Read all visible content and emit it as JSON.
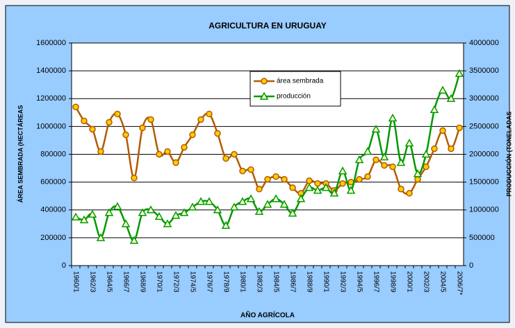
{
  "chart_data": {
    "type": "line",
    "title": "AGRICULTURA EN URUGUAY",
    "x_label": "AÑO AGRÍCOLA",
    "y_label": "ÁREA SEMBRADA (HECTÁREAS",
    "y2_label": "PRODUCCIÓN (TONELADAS",
    "categories": [
      "1960/1",
      null,
      "1962/3",
      null,
      "1964/5",
      null,
      "1966/7",
      null,
      "1968/9",
      null,
      "1970/1",
      null,
      "1972/3",
      null,
      "1974/5",
      null,
      "1976/7",
      null,
      "1978/9",
      null,
      "1980/1",
      null,
      "1982/3",
      null,
      "1984/5",
      null,
      "1986/7",
      null,
      "1988/9",
      null,
      "1990/1",
      null,
      "1992/3",
      null,
      "1994/5",
      null,
      "1996/7",
      null,
      "1998/9",
      null,
      "2000/1",
      null,
      "2002/3",
      null,
      "2004/5",
      null,
      "2006/7*"
    ],
    "series": [
      {
        "name": "área sembrada",
        "color": "#b35a00",
        "marker_fill": "#ffcc00",
        "marker": "circle",
        "values": [
          1140000,
          1040000,
          980000,
          820000,
          1030000,
          1090000,
          940000,
          630000,
          990000,
          1050000,
          800000,
          820000,
          740000,
          850000,
          940000,
          1050000,
          1090000,
          950000,
          770000,
          800000,
          680000,
          690000,
          550000,
          620000,
          640000,
          620000,
          560000,
          520000,
          610000,
          590000,
          590000,
          540000,
          590000,
          600000,
          620000,
          640000,
          760000,
          720000,
          710000,
          550000,
          520000,
          620000,
          710000,
          840000,
          970000,
          840000,
          990000
        ]
      },
      {
        "name": "producción",
        "color": "#009900",
        "marker_fill": "#ffffcc",
        "marker": "triangle",
        "axis": "y2",
        "values": [
          870000,
          820000,
          920000,
          500000,
          950000,
          1060000,
          750000,
          450000,
          950000,
          1000000,
          880000,
          750000,
          900000,
          950000,
          1050000,
          1150000,
          1150000,
          1000000,
          720000,
          1050000,
          1150000,
          1200000,
          970000,
          1100000,
          1200000,
          1100000,
          940000,
          1200000,
          1400000,
          1350000,
          1400000,
          1300000,
          1700000,
          1350000,
          1900000,
          2050000,
          2450000,
          1950000,
          2650000,
          1850000,
          2200000,
          1650000,
          2000000,
          2800000,
          3150000,
          3000000,
          3450000
        ]
      }
    ],
    "ylim": [
      0,
      1600000
    ],
    "yticks": [
      0,
      200000,
      400000,
      600000,
      800000,
      1000000,
      1200000,
      1400000,
      1600000
    ],
    "y2lim": [
      0,
      4000000
    ],
    "y2ticks": [
      0,
      500000,
      1000000,
      1500000,
      2000000,
      2500000,
      3000000,
      3500000,
      4000000
    ],
    "grid": true,
    "legend_position": "top",
    "smooth": true
  }
}
